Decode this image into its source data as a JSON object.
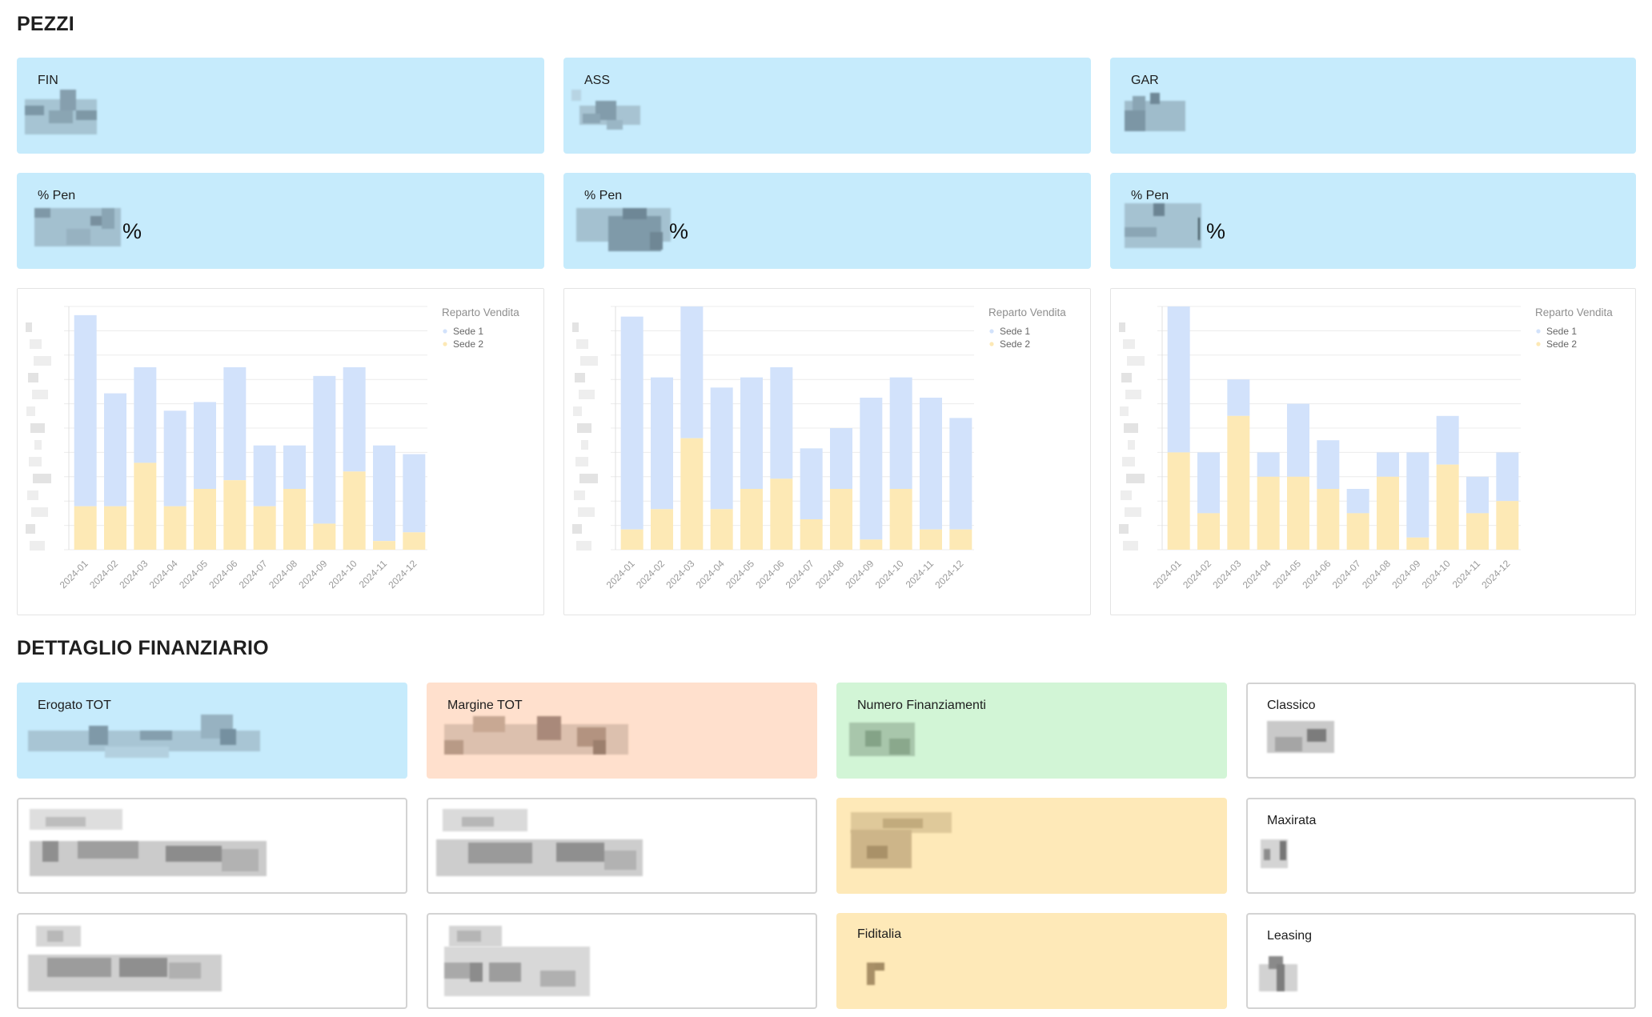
{
  "sections": {
    "pezzi": "PEZZI",
    "dettaglio": "DETTAGLIO FINANZIARIO"
  },
  "kpi_top": [
    {
      "label": "FIN",
      "value": "█████"
    },
    {
      "label": "ASS",
      "value": "█████"
    },
    {
      "label": "GAR",
      "value": "█████"
    }
  ],
  "kpi_pen": [
    {
      "label": "% Pen",
      "value": "██,██",
      "unit": "%"
    },
    {
      "label": "% Pen",
      "value": "██,██",
      "unit": "%"
    },
    {
      "label": "% Pen",
      "value": "██,██",
      "unit": "%"
    }
  ],
  "colors": {
    "sede1": "#d2e2fb",
    "sede2": "#fde9b5",
    "blue_card": "#c6ebfc",
    "peach_card": "#ffe0cd",
    "green_card": "#d2f5d6",
    "yellow_card": "#fee9b8"
  },
  "chart_data": [
    {
      "type": "bar",
      "stacked": true,
      "legend_title": "Reparto Vendita",
      "categories": [
        "2024-01",
        "2024-02",
        "2024-03",
        "2024-04",
        "2024-05",
        "2024-06",
        "2024-07",
        "2024-08",
        "2024-09",
        "2024-10",
        "2024-11",
        "2024-12"
      ],
      "series": [
        {
          "name": "Sede 1",
          "values": [
            44,
            26,
            22,
            22,
            20,
            26,
            14,
            10,
            34,
            24,
            22,
            18
          ]
        },
        {
          "name": "Sede 2",
          "values": [
            10,
            10,
            20,
            10,
            14,
            16,
            10,
            14,
            6,
            18,
            2,
            4
          ]
        }
      ],
      "ylim": [
        0,
        56
      ]
    },
    {
      "type": "bar",
      "stacked": true,
      "legend_title": "Reparto Vendita",
      "categories": [
        "2024-01",
        "2024-02",
        "2024-03",
        "2024-04",
        "2024-05",
        "2024-06",
        "2024-07",
        "2024-08",
        "2024-09",
        "2024-10",
        "2024-11",
        "2024-12"
      ],
      "series": [
        {
          "name": "Sede 1",
          "values": [
            21,
            13,
            13,
            12,
            11,
            11,
            7,
            6,
            14,
            11,
            13,
            11
          ]
        },
        {
          "name": "Sede 2",
          "values": [
            2,
            4,
            11,
            4,
            6,
            7,
            3,
            6,
            1,
            6,
            2,
            2
          ]
        }
      ],
      "ylim": [
        0,
        24
      ]
    },
    {
      "type": "bar",
      "stacked": true,
      "legend_title": "Reparto Vendita",
      "categories": [
        "2024-01",
        "2024-02",
        "2024-03",
        "2024-04",
        "2024-05",
        "2024-06",
        "2024-07",
        "2024-08",
        "2024-09",
        "2024-10",
        "2024-11",
        "2024-12"
      ],
      "series": [
        {
          "name": "Sede 1",
          "values": [
            12,
            5,
            3,
            2,
            6,
            4,
            2,
            2,
            7,
            4,
            3,
            4
          ]
        },
        {
          "name": "Sede 2",
          "values": [
            8,
            3,
            11,
            6,
            6,
            5,
            3,
            6,
            1,
            7,
            3,
            4
          ]
        }
      ],
      "ylim": [
        0,
        20
      ]
    }
  ],
  "finance": {
    "erogato": {
      "label": "Erogato TOT",
      "value": "███.███,██ €"
    },
    "margine": {
      "label": "Margine TOT",
      "value": "██.███,██ €"
    },
    "numero": {
      "label": "Numero Finanziamenti",
      "value": "███"
    },
    "classico": {
      "label": "Classico",
      "value": "███"
    },
    "row2_col1": {
      "label": "███████",
      "value": "██.███,██ €"
    },
    "row2_col2": {
      "label": "███████",
      "value": "██.███,██ €"
    },
    "row2_col3": {
      "label": "███████",
      "value": "███"
    },
    "maxirata": {
      "label": "Maxirata",
      "value": "██"
    },
    "row3_col1": {
      "label": "████",
      "value": "██.███,██ €"
    },
    "row3_col2": {
      "label": "█████",
      "value": "██.███,██ €"
    },
    "fiditalia": {
      "label": "Fiditalia",
      "value": "█"
    },
    "leasing": {
      "label": "Leasing",
      "value": "██"
    }
  }
}
